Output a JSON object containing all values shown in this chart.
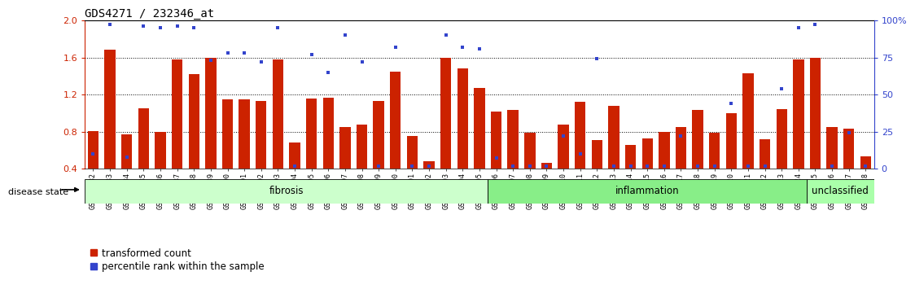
{
  "title": "GDS4271 / 232346_at",
  "samples": [
    "GSM380382",
    "GSM380383",
    "GSM380384",
    "GSM380385",
    "GSM380386",
    "GSM380387",
    "GSM380388",
    "GSM380389",
    "GSM380390",
    "GSM380391",
    "GSM380392",
    "GSM380393",
    "GSM380394",
    "GSM380395",
    "GSM380396",
    "GSM380397",
    "GSM380398",
    "GSM380399",
    "GSM380400",
    "GSM380401",
    "GSM380402",
    "GSM380403",
    "GSM380404",
    "GSM380405",
    "GSM380406",
    "GSM380407",
    "GSM380408",
    "GSM380409",
    "GSM380410",
    "GSM380411",
    "GSM380412",
    "GSM380413",
    "GSM380414",
    "GSM380415",
    "GSM380416",
    "GSM380417",
    "GSM380418",
    "GSM380419",
    "GSM380420",
    "GSM380421",
    "GSM380422",
    "GSM380423",
    "GSM380424",
    "GSM380425",
    "GSM380426",
    "GSM380427",
    "GSM380428"
  ],
  "bar_values": [
    0.81,
    1.68,
    0.77,
    1.05,
    0.8,
    1.58,
    1.42,
    1.6,
    1.15,
    1.15,
    1.13,
    1.58,
    0.68,
    1.16,
    1.17,
    0.85,
    0.88,
    1.13,
    1.45,
    0.75,
    0.48,
    1.6,
    1.48,
    1.27,
    1.02,
    1.03,
    0.79,
    0.46,
    0.88,
    1.12,
    0.71,
    1.08,
    0.66,
    0.73,
    0.8,
    0.85,
    1.03,
    0.79,
    1.0,
    1.43,
    0.72,
    1.04,
    1.58,
    1.6,
    0.85,
    0.83,
    0.53
  ],
  "blue_pct": [
    10,
    97,
    8,
    96,
    95,
    96,
    95,
    73,
    78,
    78,
    72,
    95,
    2,
    77,
    65,
    90,
    72,
    2,
    82,
    2,
    2,
    90,
    82,
    81,
    7,
    2,
    2,
    2,
    22,
    10,
    74,
    2,
    2,
    2,
    2,
    22,
    2,
    2,
    44,
    2,
    2,
    54,
    95,
    97,
    2,
    24,
    2
  ],
  "groups": [
    {
      "name": "fibrosis",
      "start": 0,
      "end": 24,
      "color": "#ccffcc"
    },
    {
      "name": "inflammation",
      "start": 24,
      "end": 43,
      "color": "#88ee88"
    },
    {
      "name": "unclassified",
      "start": 43,
      "end": 47,
      "color": "#aaffaa"
    }
  ],
  "ylim_left": [
    0.4,
    2.0
  ],
  "ylim_right": [
    0,
    100
  ],
  "yticks_left": [
    0.4,
    0.8,
    1.2,
    1.6,
    2.0
  ],
  "yticks_right": [
    0,
    25,
    50,
    75,
    100
  ],
  "hlines": [
    0.8,
    1.2,
    1.6
  ],
  "bar_color": "#cc2200",
  "blue_color": "#3344cc",
  "bar_width": 0.65,
  "bg_color": "#ffffff",
  "disease_state_label": "disease state",
  "legend_items": [
    "transformed count",
    "percentile rank within the sample"
  ],
  "tick_label_size": 6.0,
  "axis_label_color_left": "#cc2200",
  "axis_label_color_right": "#3344cc"
}
